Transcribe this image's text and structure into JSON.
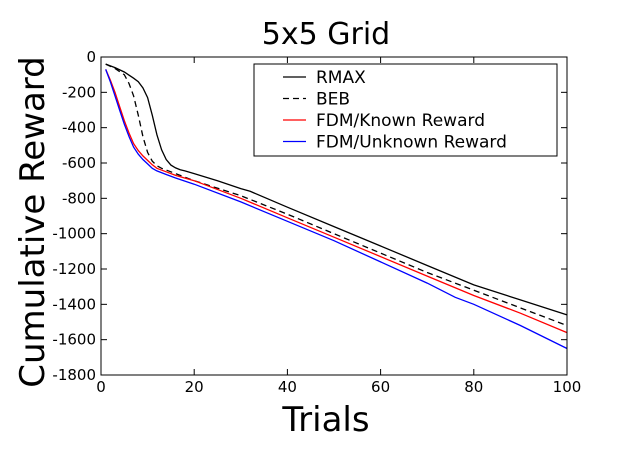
{
  "chart_data": {
    "type": "line",
    "title": "5x5 Grid",
    "xlabel": "Trials",
    "ylabel": "Cumulative Reward",
    "xlim": [
      0,
      100
    ],
    "ylim": [
      -1800,
      0
    ],
    "xticks": [
      0,
      20,
      40,
      60,
      80,
      100
    ],
    "yticks": [
      0,
      -200,
      -400,
      -600,
      -800,
      -1000,
      -1200,
      -1400,
      -1600,
      -1800
    ],
    "grid": false,
    "legend_position": "top-right",
    "series": [
      {
        "name": "RMAX",
        "color": "#000000",
        "dash": "solid",
        "x": [
          1,
          3,
          5,
          7,
          8,
          9,
          10,
          11,
          12,
          13,
          14,
          15,
          16,
          17,
          18,
          20,
          25,
          30,
          32,
          40,
          50,
          60,
          70,
          80,
          90,
          100
        ],
        "y": [
          -40,
          -60,
          -85,
          -120,
          -140,
          -175,
          -230,
          -330,
          -440,
          -525,
          -580,
          -612,
          -628,
          -638,
          -645,
          -660,
          -700,
          -745,
          -760,
          -850,
          -960,
          -1070,
          -1180,
          -1290,
          -1375,
          -1460
        ]
      },
      {
        "name": "BEB",
        "color": "#000000",
        "dash": "dashed",
        "x": [
          1,
          3,
          5,
          6,
          7,
          8,
          9,
          10,
          11,
          12,
          13,
          15,
          17,
          20,
          30,
          40,
          50,
          60,
          70,
          80,
          90,
          100
        ],
        "y": [
          -40,
          -65,
          -100,
          -150,
          -220,
          -330,
          -450,
          -540,
          -590,
          -615,
          -630,
          -650,
          -670,
          -700,
          -785,
          -890,
          -1000,
          -1110,
          -1220,
          -1320,
          -1420,
          -1520
        ]
      },
      {
        "name": "FDM/Known Reward",
        "color": "#ff0000",
        "dash": "solid",
        "x": [
          1,
          2,
          3,
          4,
          5,
          6,
          7,
          8,
          9,
          10,
          11,
          12,
          14,
          16,
          20,
          30,
          40,
          50,
          60,
          70,
          80,
          90,
          100
        ],
        "y": [
          -70,
          -130,
          -200,
          -280,
          -360,
          -430,
          -490,
          -530,
          -560,
          -585,
          -610,
          -630,
          -650,
          -670,
          -700,
          -800,
          -910,
          -1020,
          -1130,
          -1240,
          -1350,
          -1450,
          -1560
        ]
      },
      {
        "name": "FDM/Unknown Reward",
        "color": "#0000ff",
        "dash": "solid",
        "x": [
          1,
          2,
          3,
          4,
          5,
          6,
          7,
          8,
          9,
          10,
          11,
          12,
          14,
          16,
          20,
          30,
          40,
          50,
          60,
          70,
          76,
          80,
          90,
          100
        ],
        "y": [
          -70,
          -140,
          -220,
          -300,
          -380,
          -450,
          -510,
          -550,
          -580,
          -605,
          -630,
          -645,
          -665,
          -685,
          -720,
          -820,
          -930,
          -1040,
          -1160,
          -1280,
          -1360,
          -1400,
          -1520,
          -1650
        ]
      }
    ]
  }
}
